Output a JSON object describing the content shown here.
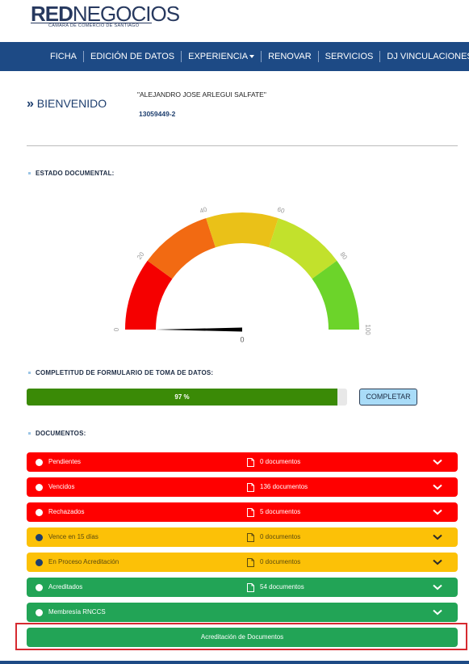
{
  "header": {
    "logo_bold": "RED",
    "logo_light": "NEGOCIOS",
    "logo_subtitle": "CAMARA DE COMERCIO DE SANTIAGO"
  },
  "nav": {
    "items": [
      "FICHA",
      "EDICIÓN DE DATOS",
      "EXPERIENCIA",
      "RENOVAR",
      "SERVICIOS",
      "DJ VINCULACIONES"
    ]
  },
  "welcome": {
    "title": "BIENVENIDO",
    "name": "\"ALEJANDRO JOSE ARLEGUI SALFATE\"",
    "id": "13059449-2"
  },
  "estado": {
    "label": "ESTADO DOCUMENTAL:",
    "gauge": {
      "value": 0,
      "range": [
        0,
        100
      ],
      "ticks": [
        0,
        20,
        40,
        60,
        80,
        100
      ],
      "band_colors": [
        "#f50000",
        "#f26a12",
        "#eac118",
        "#c2e12c",
        "#6cd42a"
      ]
    }
  },
  "completitud": {
    "label": "COMPLETITUD DE FORMULARIO DE TOMA DE DATOS:",
    "progress": {
      "value": 97,
      "label": "97 %",
      "range": [
        0,
        100
      ],
      "color": "#3a8a06"
    },
    "button": "COMPLETAR"
  },
  "documentos": {
    "label": "DOCUMENTOS:",
    "rows": [
      {
        "label": "Pendientes",
        "count": "0 documentos",
        "color": "#ff0000"
      },
      {
        "label": "Vencidos",
        "count": "136 documentos",
        "color": "#ff0000"
      },
      {
        "label": "Rechazados",
        "count": "5 documentos",
        "color": "#ff0000"
      },
      {
        "label": "Vence en 15 días",
        "count": "0 documentos",
        "color": "#fcc107"
      },
      {
        "label": "En Proceso Acreditación",
        "count": "0 documentos",
        "color": "#fcc107"
      },
      {
        "label": "Acreditados",
        "count": "54 documentos",
        "color": "#22a456"
      },
      {
        "label": "Membresía RNCCS",
        "color": "#22a456"
      }
    ],
    "button": "Acreditación de Documentos"
  }
}
